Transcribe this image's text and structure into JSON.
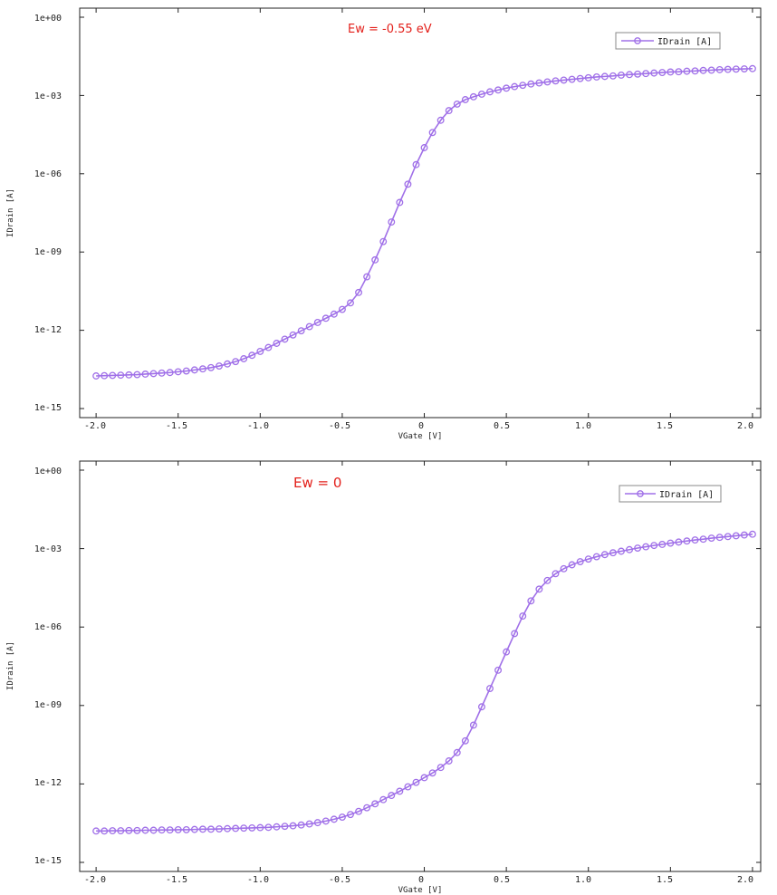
{
  "chart_data": [
    {
      "type": "line",
      "log_y": true,
      "xlabel": "VGate [V]",
      "ylabel": "IDrain [A]",
      "annotation": "Ew = -0.55 eV",
      "legend_label": "IDrain [A]",
      "legend_position": "top-right",
      "xlim": [
        -2.1,
        2.05
      ],
      "ylim": [
        1e-15,
        1
      ],
      "x_ticks": [
        -2.0,
        -1.5,
        -1.0,
        -0.5,
        0,
        0.5,
        1.0,
        1.5,
        2.0
      ],
      "x_tick_labels": [
        "-2.0",
        "-1.5",
        "-1.0",
        "-0.5",
        "0",
        "0.5",
        "1.0",
        "1.5",
        "2.0"
      ],
      "y_tick_labels": [
        "1e+00",
        "1e-03",
        "1e-06",
        "1e-09",
        "1e-12",
        "1e-15"
      ],
      "color": "#a070e8",
      "series": [
        {
          "name": "IDrain [A]",
          "x": [
            -2.0,
            -1.95,
            -1.9,
            -1.85,
            -1.8,
            -1.75,
            -1.7,
            -1.65,
            -1.6,
            -1.55,
            -1.5,
            -1.45,
            -1.4,
            -1.35,
            -1.3,
            -1.25,
            -1.2,
            -1.15,
            -1.1,
            -1.05,
            -1.0,
            -0.95,
            -0.9,
            -0.85,
            -0.8,
            -0.75,
            -0.7,
            -0.65,
            -0.6,
            -0.55,
            -0.5,
            -0.45,
            -0.4,
            -0.35,
            -0.3,
            -0.25,
            -0.2,
            -0.15,
            -0.1,
            -0.05,
            0.0,
            0.05,
            0.1,
            0.15,
            0.2,
            0.25,
            0.3,
            0.35,
            0.4,
            0.45,
            0.5,
            0.55,
            0.6,
            0.65,
            0.7,
            0.75,
            0.8,
            0.85,
            0.9,
            0.95,
            1.0,
            1.05,
            1.1,
            1.15,
            1.2,
            1.25,
            1.3,
            1.35,
            1.4,
            1.45,
            1.5,
            1.55,
            1.6,
            1.65,
            1.7,
            1.75,
            1.8,
            1.85,
            1.9,
            1.95,
            2.0
          ],
          "log10_y": [
            -13.75,
            -13.74,
            -13.73,
            -13.72,
            -13.71,
            -13.7,
            -13.68,
            -13.66,
            -13.64,
            -13.62,
            -13.59,
            -13.56,
            -13.52,
            -13.48,
            -13.43,
            -13.37,
            -13.29,
            -13.2,
            -13.09,
            -12.96,
            -12.81,
            -12.66,
            -12.5,
            -12.34,
            -12.18,
            -12.02,
            -11.86,
            -11.7,
            -11.54,
            -11.38,
            -11.2,
            -10.95,
            -10.55,
            -9.95,
            -9.3,
            -8.6,
            -7.85,
            -7.1,
            -6.4,
            -5.65,
            -5.0,
            -4.42,
            -3.95,
            -3.58,
            -3.33,
            -3.16,
            -3.05,
            -2.95,
            -2.86,
            -2.79,
            -2.72,
            -2.66,
            -2.61,
            -2.56,
            -2.52,
            -2.48,
            -2.44,
            -2.41,
            -2.38,
            -2.35,
            -2.32,
            -2.29,
            -2.27,
            -2.25,
            -2.22,
            -2.2,
            -2.18,
            -2.16,
            -2.14,
            -2.12,
            -2.1,
            -2.09,
            -2.07,
            -2.06,
            -2.04,
            -2.03,
            -2.01,
            -2.0,
            -1.99,
            -1.98,
            -1.97
          ]
        }
      ]
    },
    {
      "type": "line",
      "log_y": true,
      "xlabel": "VGate [V]",
      "ylabel": "IDrain [A]",
      "annotation": "Ew = 0",
      "legend_label": "IDrain [A]",
      "legend_position": "top-right",
      "xlim": [
        -2.1,
        2.05
      ],
      "ylim": [
        1e-15,
        1
      ],
      "x_ticks": [
        -2.0,
        -1.5,
        -1.0,
        -0.5,
        0,
        0.5,
        1.0,
        1.5,
        2.0
      ],
      "x_tick_labels": [
        "-2.0",
        "-1.5",
        "-1.0",
        "-0.5",
        "0",
        "0.5",
        "1.0",
        "1.5",
        "2.0"
      ],
      "y_tick_labels": [
        "1e+00",
        "1e-03",
        "1e-06",
        "1e-09",
        "1e-12",
        "1e-15"
      ],
      "color": "#a070e8",
      "series": [
        {
          "name": "IDrain [A]",
          "x": [
            -2.0,
            -1.95,
            -1.9,
            -1.85,
            -1.8,
            -1.75,
            -1.7,
            -1.65,
            -1.6,
            -1.55,
            -1.5,
            -1.45,
            -1.4,
            -1.35,
            -1.3,
            -1.25,
            -1.2,
            -1.15,
            -1.1,
            -1.05,
            -1.0,
            -0.95,
            -0.9,
            -0.85,
            -0.8,
            -0.75,
            -0.7,
            -0.65,
            -0.6,
            -0.55,
            -0.5,
            -0.45,
            -0.4,
            -0.35,
            -0.3,
            -0.25,
            -0.2,
            -0.15,
            -0.1,
            -0.05,
            0.0,
            0.05,
            0.1,
            0.15,
            0.2,
            0.25,
            0.3,
            0.35,
            0.4,
            0.45,
            0.5,
            0.55,
            0.6,
            0.65,
            0.7,
            0.75,
            0.8,
            0.85,
            0.9,
            0.95,
            1.0,
            1.05,
            1.1,
            1.15,
            1.2,
            1.25,
            1.3,
            1.35,
            1.4,
            1.45,
            1.5,
            1.55,
            1.6,
            1.65,
            1.7,
            1.75,
            1.8,
            1.85,
            1.9,
            1.95,
            2.0
          ],
          "log10_y": [
            -13.8,
            -13.8,
            -13.79,
            -13.79,
            -13.78,
            -13.78,
            -13.77,
            -13.77,
            -13.76,
            -13.76,
            -13.75,
            -13.75,
            -13.74,
            -13.73,
            -13.73,
            -13.72,
            -13.71,
            -13.7,
            -13.69,
            -13.68,
            -13.67,
            -13.66,
            -13.64,
            -13.62,
            -13.6,
            -13.57,
            -13.53,
            -13.48,
            -13.42,
            -13.35,
            -13.27,
            -13.17,
            -13.05,
            -12.91,
            -12.76,
            -12.6,
            -12.44,
            -12.28,
            -12.11,
            -11.94,
            -11.76,
            -11.58,
            -11.37,
            -11.12,
            -10.8,
            -10.35,
            -9.75,
            -9.05,
            -8.35,
            -7.65,
            -6.95,
            -6.25,
            -5.58,
            -5.0,
            -4.55,
            -4.22,
            -3.96,
            -3.77,
            -3.62,
            -3.5,
            -3.4,
            -3.31,
            -3.23,
            -3.16,
            -3.1,
            -3.04,
            -2.98,
            -2.93,
            -2.88,
            -2.84,
            -2.79,
            -2.75,
            -2.71,
            -2.67,
            -2.64,
            -2.6,
            -2.57,
            -2.54,
            -2.51,
            -2.48,
            -2.45
          ]
        }
      ]
    }
  ]
}
